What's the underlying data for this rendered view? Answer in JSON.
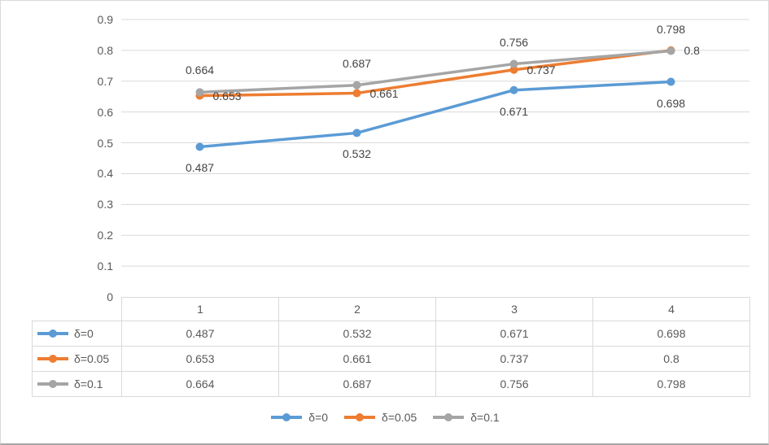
{
  "chart_data": {
    "type": "line",
    "title": "",
    "categories": [
      "1",
      "2",
      "3",
      "4"
    ],
    "series": [
      {
        "name": "δ=0",
        "color": "#5B9BD5",
        "values": [
          0.487,
          0.532,
          0.671,
          0.698
        ],
        "label_position": "below"
      },
      {
        "name": "δ=0.05",
        "color": "#ED7D31",
        "values": [
          0.653,
          0.661,
          0.737,
          0.8
        ],
        "label_position": "right"
      },
      {
        "name": "δ=0.1",
        "color": "#A5A5A5",
        "values": [
          0.664,
          0.687,
          0.756,
          0.798
        ],
        "label_position": "above"
      }
    ],
    "xlabel": "",
    "ylabel": "",
    "ylim": [
      0,
      0.9
    ],
    "yticks": [
      0,
      0.1,
      0.2,
      0.3,
      0.4,
      0.5,
      0.6,
      0.7,
      0.8,
      0.9
    ],
    "grid": true,
    "gridline_color": "#D9D9D9",
    "marker": "circle",
    "legend_position": "bottom",
    "show_data_table": true,
    "tick_text_color": "#595959",
    "data_label_color": "#444444"
  }
}
